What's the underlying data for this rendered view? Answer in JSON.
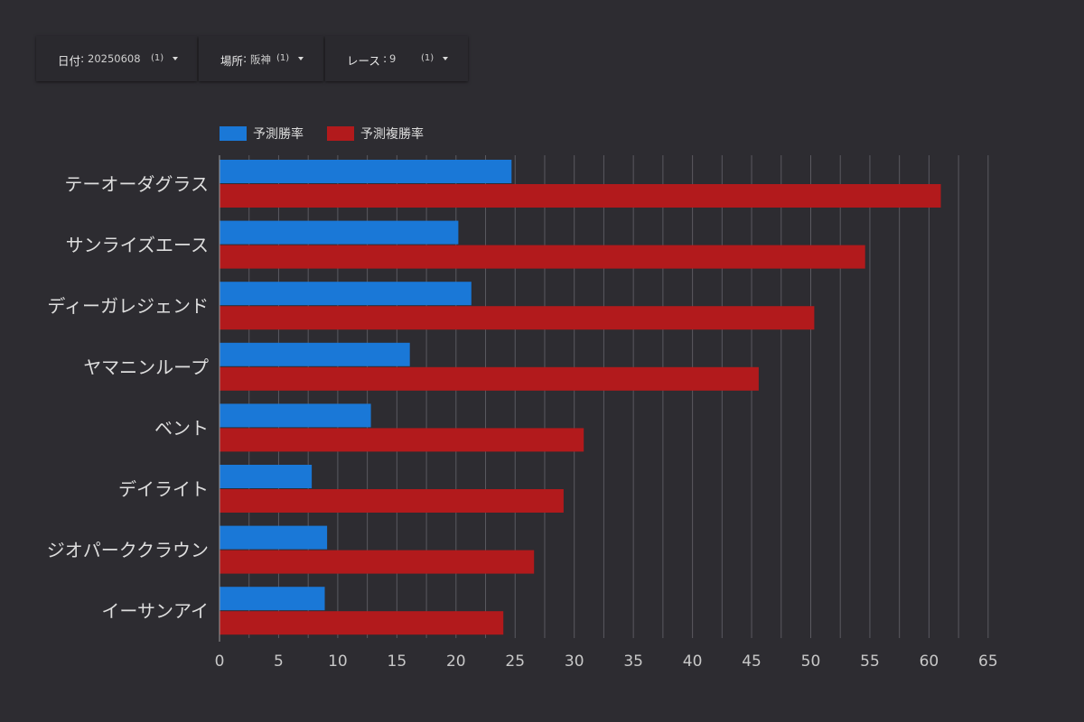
{
  "filters": [
    {
      "label": "日付",
      "value": "20250608",
      "count": "(1)"
    },
    {
      "label": "場所",
      "value": "阪神",
      "count": "(1)"
    },
    {
      "label": "レース",
      "value": "9",
      "count": "(1)"
    }
  ],
  "colors": {
    "background": "#2d2c31",
    "win_series": "#1a78d7",
    "place_series": "#b21a1c",
    "gridline": "#5a5960"
  },
  "chart_data": {
    "type": "bar",
    "orientation": "horizontal",
    "categories": [
      "テーオーダグラス",
      "サンライズエース",
      "ディーガレジェンド",
      "ヤマニンループ",
      "ベント",
      "デイライト",
      "ジオパーククラウン",
      "イーサンアイ"
    ],
    "series": [
      {
        "name": "予測勝率",
        "color": "#1a78d7",
        "values": [
          24.7,
          20.2,
          21.3,
          16.1,
          12.8,
          7.8,
          9.1,
          8.9
        ]
      },
      {
        "name": "予測複勝率",
        "color": "#b21a1c",
        "values": [
          61.0,
          54.6,
          50.3,
          45.6,
          30.8,
          29.1,
          26.6,
          24.0
        ]
      }
    ],
    "xlim": [
      0,
      65
    ],
    "xticks": [
      "0",
      "5",
      "10",
      "15",
      "20",
      "25",
      "30",
      "35",
      "40",
      "45",
      "50",
      "55",
      "60",
      "65"
    ],
    "grid": true,
    "legend_position": "top-left"
  }
}
